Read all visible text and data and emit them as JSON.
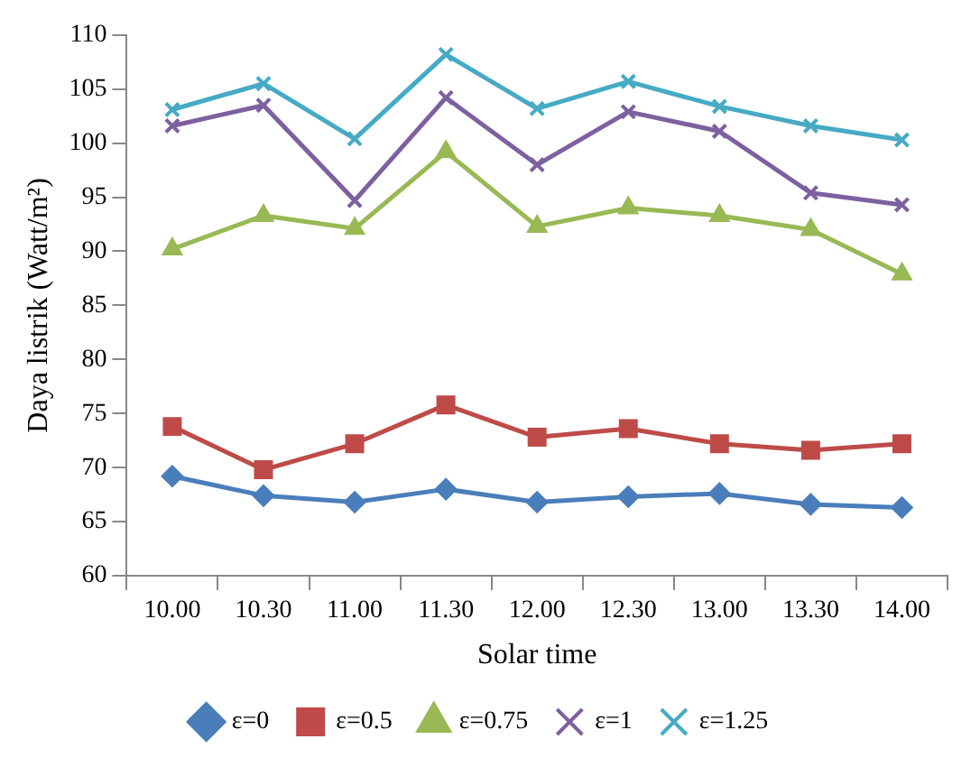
{
  "chart_data": {
    "type": "line",
    "xlabel": "Solar time",
    "ylabel": "Daya listrik (Watt/m²)",
    "categories": [
      "10.00",
      "10.30",
      "11.00",
      "11.30",
      "12.00",
      "12.30",
      "13.00",
      "13.30",
      "14.00"
    ],
    "series": [
      {
        "name": "ε=0",
        "color": "#4a7ebb",
        "marker": "diamond",
        "values": [
          69.2,
          67.4,
          66.8,
          68.0,
          66.8,
          67.3,
          67.6,
          66.6,
          66.3
        ]
      },
      {
        "name": "ε=0.5",
        "color": "#be4b48",
        "marker": "square",
        "values": [
          73.8,
          69.8,
          72.2,
          75.8,
          72.8,
          73.6,
          72.2,
          71.6,
          72.2
        ]
      },
      {
        "name": "ε=0.75",
        "color": "#98b954",
        "marker": "triangle",
        "values": [
          90.2,
          93.3,
          92.1,
          99.2,
          92.3,
          94.0,
          93.3,
          92.0,
          87.9
        ]
      },
      {
        "name": "ε=1",
        "color": "#7d60a0",
        "marker": "cross",
        "values": [
          101.6,
          103.5,
          94.7,
          104.2,
          98.0,
          102.9,
          101.1,
          95.4,
          94.3
        ]
      },
      {
        "name": "ε=1.25",
        "color": "#46aac5",
        "marker": "cross",
        "values": [
          103.1,
          105.5,
          100.4,
          108.2,
          103.2,
          105.7,
          103.4,
          101.6,
          100.3
        ]
      }
    ],
    "ylim": [
      60,
      110
    ],
    "yticks": [
      60,
      65,
      70,
      75,
      80,
      85,
      90,
      95,
      100,
      105,
      110
    ],
    "grid": false,
    "legend": "bottom",
    "line_style": "solid"
  }
}
